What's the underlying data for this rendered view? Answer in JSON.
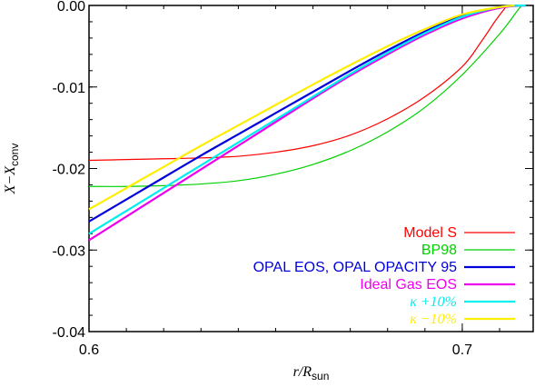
{
  "chart_data": {
    "type": "line",
    "title": "",
    "xlabel": "r/R_sun",
    "xlabel_main": "r/R",
    "xlabel_sub": "sun",
    "ylabel": "X−X_conv",
    "ylabel_main": "X−X",
    "ylabel_sub": "conv",
    "xlim": [
      0.6,
      0.719
    ],
    "ylim": [
      -0.04,
      0.0
    ],
    "x_ticks": [
      {
        "value": 0.6,
        "label": "0.6"
      },
      {
        "value": 0.7,
        "label": "0.7"
      }
    ],
    "y_ticks": [
      {
        "value": 0.0,
        "label": "0.00"
      },
      {
        "value": -0.01,
        "label": "-0.01"
      },
      {
        "value": -0.02,
        "label": "-0.02"
      },
      {
        "value": -0.03,
        "label": "-0.03"
      },
      {
        "value": -0.04,
        "label": "-0.04"
      }
    ],
    "grid": false,
    "legend_position": "bottom-right",
    "series": [
      {
        "name": "Model S",
        "color": "#ff0000",
        "points": [
          [
            0.6,
            -0.019
          ],
          [
            0.61,
            -0.0189
          ],
          [
            0.62,
            -0.0188
          ],
          [
            0.63,
            -0.0187
          ],
          [
            0.64,
            -0.0185
          ],
          [
            0.65,
            -0.018
          ],
          [
            0.66,
            -0.0172
          ],
          [
            0.67,
            -0.0159
          ],
          [
            0.68,
            -0.0139
          ],
          [
            0.69,
            -0.0112
          ],
          [
            0.7,
            -0.0075
          ],
          [
            0.705,
            -0.0045
          ],
          [
            0.709,
            -0.0018
          ],
          [
            0.712,
            0.0
          ]
        ]
      },
      {
        "name": "BP98",
        "color": "#00d000",
        "points": [
          [
            0.6,
            -0.0222
          ],
          [
            0.61,
            -0.0222
          ],
          [
            0.62,
            -0.0221
          ],
          [
            0.63,
            -0.0219
          ],
          [
            0.64,
            -0.0215
          ],
          [
            0.65,
            -0.0207
          ],
          [
            0.66,
            -0.0195
          ],
          [
            0.67,
            -0.0178
          ],
          [
            0.68,
            -0.0155
          ],
          [
            0.69,
            -0.0125
          ],
          [
            0.7,
            -0.0085
          ],
          [
            0.71,
            -0.0035
          ],
          [
            0.715,
            -0.0005
          ],
          [
            0.716,
            0.0
          ]
        ]
      },
      {
        "name": "OPAL EOS, OPAL OPACITY 95",
        "color": "#0000dd",
        "points": [
          [
            0.6,
            -0.0265
          ],
          [
            0.61,
            -0.0238
          ],
          [
            0.62,
            -0.0211
          ],
          [
            0.63,
            -0.0184
          ],
          [
            0.64,
            -0.0158
          ],
          [
            0.65,
            -0.0132
          ],
          [
            0.66,
            -0.0106
          ],
          [
            0.67,
            -0.008
          ],
          [
            0.68,
            -0.0055
          ],
          [
            0.69,
            -0.0032
          ],
          [
            0.7,
            -0.0013
          ],
          [
            0.71,
            -0.0002
          ],
          [
            0.716,
            0.0
          ]
        ]
      },
      {
        "name": "Ideal Gas EOS",
        "color": "#ee00ee",
        "points": [
          [
            0.6,
            -0.0288
          ],
          [
            0.61,
            -0.0259
          ],
          [
            0.62,
            -0.023
          ],
          [
            0.63,
            -0.0201
          ],
          [
            0.64,
            -0.0172
          ],
          [
            0.65,
            -0.0143
          ],
          [
            0.66,
            -0.0114
          ],
          [
            0.67,
            -0.0086
          ],
          [
            0.68,
            -0.006
          ],
          [
            0.69,
            -0.0036
          ],
          [
            0.7,
            -0.0016
          ],
          [
            0.71,
            -0.0003
          ],
          [
            0.717,
            0.0
          ]
        ]
      },
      {
        "name": "κ +10%",
        "color": "#00eeee",
        "points": [
          [
            0.6,
            -0.028
          ],
          [
            0.61,
            -0.0252
          ],
          [
            0.62,
            -0.0224
          ],
          [
            0.63,
            -0.0196
          ],
          [
            0.64,
            -0.0168
          ],
          [
            0.65,
            -0.014
          ],
          [
            0.66,
            -0.0112
          ],
          [
            0.67,
            -0.0084
          ],
          [
            0.68,
            -0.0058
          ],
          [
            0.69,
            -0.0034
          ],
          [
            0.7,
            -0.0014
          ],
          [
            0.71,
            -0.0002
          ],
          [
            0.717,
            0.0
          ]
        ]
      },
      {
        "name": "κ −10%",
        "color": "#ffee00",
        "points": [
          [
            0.6,
            -0.025
          ],
          [
            0.61,
            -0.0224
          ],
          [
            0.62,
            -0.0198
          ],
          [
            0.63,
            -0.0172
          ],
          [
            0.64,
            -0.0147
          ],
          [
            0.65,
            -0.0122
          ],
          [
            0.66,
            -0.0097
          ],
          [
            0.67,
            -0.0073
          ],
          [
            0.68,
            -0.005
          ],
          [
            0.69,
            -0.0029
          ],
          [
            0.7,
            -0.0011
          ],
          [
            0.71,
            -0.0002
          ],
          [
            0.714,
            0.0
          ]
        ]
      }
    ]
  }
}
